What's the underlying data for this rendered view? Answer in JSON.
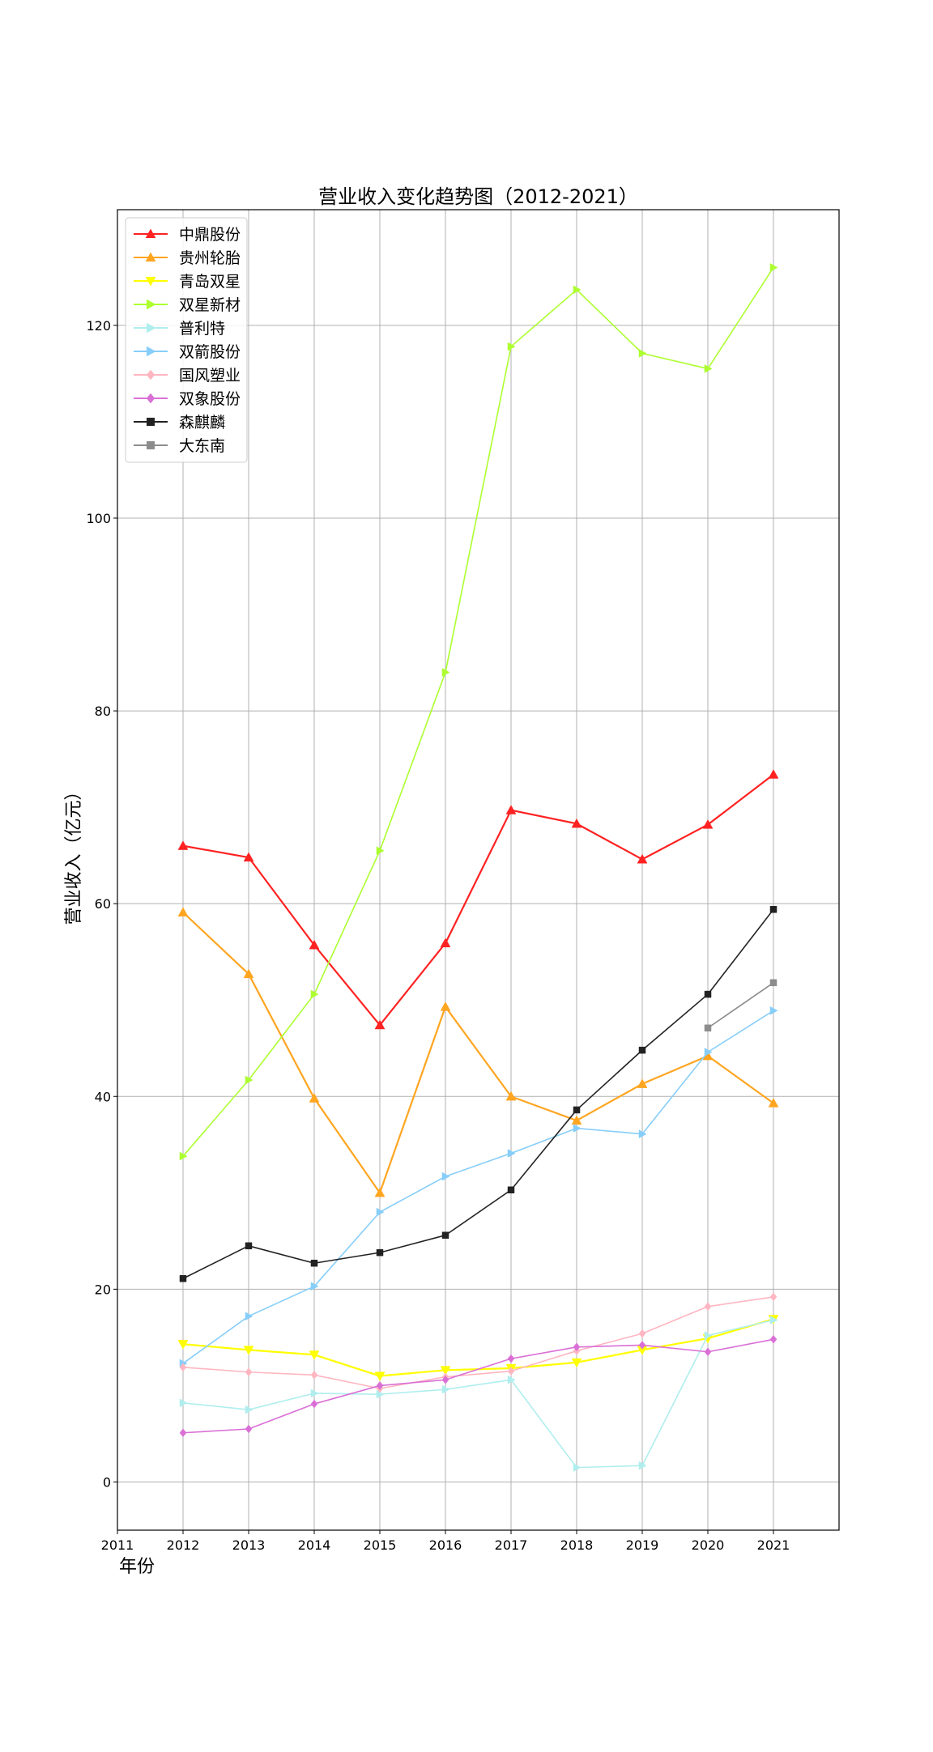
{
  "chart_data": {
    "type": "line",
    "title": "营业收入变化趋势图（2012-2021）",
    "xlabel": "年份",
    "ylabel": "营业收入（亿元）",
    "xlim": [
      2011,
      2022
    ],
    "ylim": [
      -5,
      132
    ],
    "x_ticks": [
      2011,
      2012,
      2013,
      2014,
      2015,
      2016,
      2017,
      2018,
      2019,
      2020,
      2021
    ],
    "y_ticks": [
      0,
      20,
      40,
      60,
      80,
      100,
      120
    ],
    "grid": true,
    "legend_position": "top-left",
    "series": [
      {
        "name": "中鼎股份",
        "color": "#ff2222",
        "marker": "triangle-up",
        "x": [
          2012,
          2013,
          2014,
          2015,
          2016,
          2017,
          2018,
          2019,
          2020,
          2021
        ],
        "y": [
          66.0,
          64.8,
          55.7,
          47.4,
          55.9,
          69.7,
          68.3,
          64.6,
          68.2,
          73.4
        ]
      },
      {
        "name": "贵州轮胎",
        "color": "#ffa520",
        "marker": "triangle-up",
        "x": [
          2012,
          2013,
          2014,
          2015,
          2016,
          2017,
          2018,
          2019,
          2020,
          2021
        ],
        "y": [
          59.1,
          52.7,
          39.8,
          30.0,
          49.3,
          40.0,
          37.5,
          41.3,
          44.2,
          39.3
        ]
      },
      {
        "name": "青岛双星",
        "color": "#ffff00",
        "marker": "triangle-down",
        "x": [
          2012,
          2013,
          2014,
          2015,
          2016,
          2017,
          2018,
          2019,
          2020,
          2021
        ],
        "y": [
          14.3,
          13.7,
          13.2,
          11.0,
          11.6,
          11.8,
          12.4,
          13.7,
          14.9,
          16.9
        ]
      },
      {
        "name": "双星新材",
        "color": "#adff2f",
        "marker": "triangle-right",
        "x": [
          2012,
          2013,
          2014,
          2015,
          2016,
          2017,
          2018,
          2019,
          2020,
          2021
        ],
        "y": [
          33.8,
          41.7,
          50.6,
          65.5,
          84.0,
          117.8,
          123.7,
          117.1,
          115.5,
          126.0
        ]
      },
      {
        "name": "普利特",
        "color": "#b0eeee",
        "marker": "triangle-right",
        "x": [
          2012,
          2013,
          2014,
          2015,
          2016,
          2017,
          2018,
          2019,
          2020,
          2021
        ],
        "y": [
          8.2,
          7.5,
          9.2,
          9.1,
          9.6,
          10.6,
          1.5,
          1.7,
          15.2,
          16.8
        ]
      },
      {
        "name": "双箭股份",
        "color": "#87cefa",
        "marker": "triangle-right",
        "x": [
          2012,
          2013,
          2014,
          2015,
          2016,
          2017,
          2018,
          2019,
          2020,
          2021
        ],
        "y": [
          12.3,
          17.2,
          20.3,
          28.0,
          31.7,
          34.1,
          36.7,
          36.1,
          44.6,
          48.9
        ]
      },
      {
        "name": "国风塑业",
        "color": "#ffb6c1",
        "marker": "diamond",
        "x": [
          2012,
          2013,
          2014,
          2015,
          2016,
          2017,
          2018,
          2019,
          2020,
          2021
        ],
        "y": [
          11.9,
          11.4,
          11.1,
          9.7,
          10.9,
          11.5,
          13.6,
          15.4,
          18.2,
          19.2
        ]
      },
      {
        "name": "双象股份",
        "color": "#da70d6",
        "marker": "diamond",
        "x": [
          2012,
          2013,
          2014,
          2015,
          2016,
          2017,
          2018,
          2019,
          2020,
          2021
        ],
        "y": [
          5.1,
          5.5,
          8.1,
          10.0,
          10.6,
          12.8,
          14.0,
          14.2,
          13.5,
          14.8
        ]
      },
      {
        "name": "森麒麟",
        "color": "#222222",
        "marker": "square",
        "x": [
          2012,
          2013,
          2014,
          2015,
          2016,
          2017,
          2018,
          2019,
          2020,
          2021
        ],
        "y": [
          21.1,
          24.5,
          22.7,
          23.8,
          25.6,
          30.3,
          38.6,
          44.8,
          50.6,
          59.4
        ]
      },
      {
        "name": "大东南",
        "color": "#8c8c8c",
        "marker": "square",
        "x": [
          2020,
          2021
        ],
        "y": [
          47.1,
          51.8
        ]
      }
    ]
  }
}
